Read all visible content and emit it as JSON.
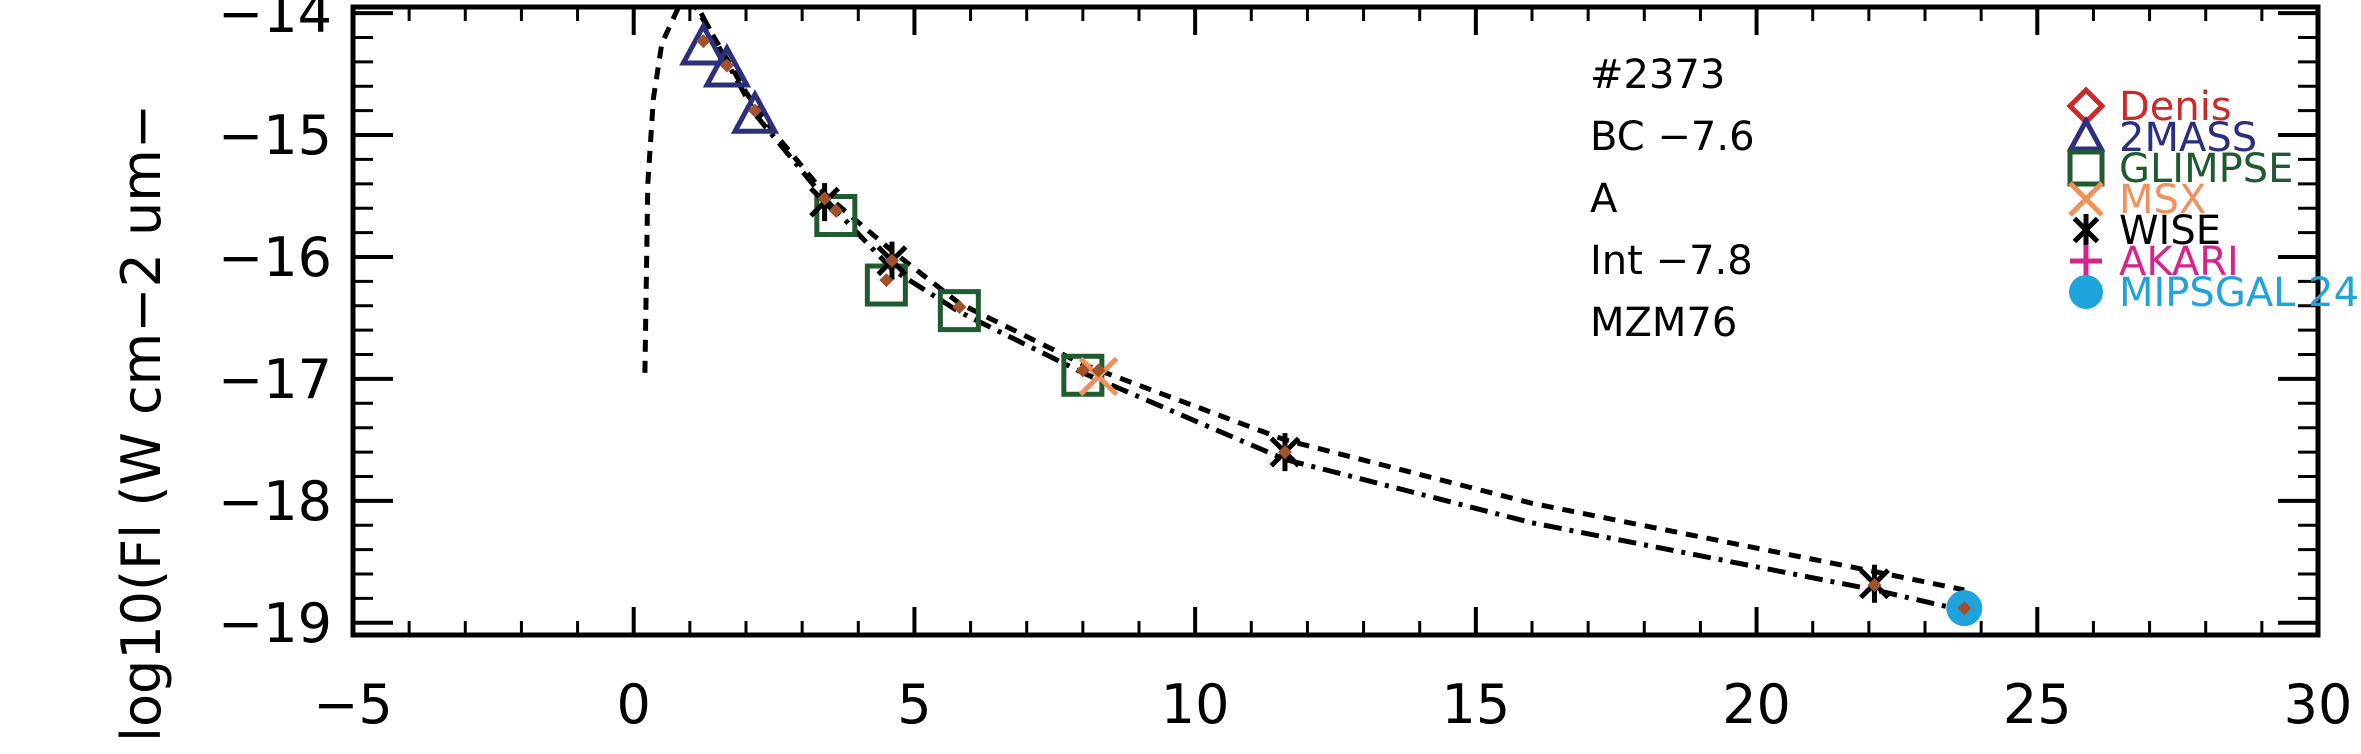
{
  "chart_data": {
    "type": "scatter",
    "ylabel": "log10(Fl (W cm−2 um−",
    "xlim": [
      -5,
      30
    ],
    "ylim": [
      -19.1,
      -13.95
    ],
    "x_ticks": [
      -5,
      0,
      5,
      10,
      15,
      20,
      25,
      30
    ],
    "x_tick_labels": [
      "−5",
      "0",
      "5",
      "10",
      "15",
      "20",
      "25",
      "30"
    ],
    "y_ticks": [
      -14,
      -15,
      -16,
      -17,
      -18,
      -19
    ],
    "y_tick_labels": [
      "−14",
      "−15",
      "−16",
      "−17",
      "−18",
      "−19"
    ],
    "annotations": [
      "#2373",
      "BC −7.6",
      "A",
      "Int −7.8",
      "MZM76"
    ],
    "legend": [
      {
        "label": "Denis",
        "marker": "diamond",
        "color": "#cc2a2a"
      },
      {
        "label": "2MASS",
        "marker": "triangle",
        "color": "#2b2f7c"
      },
      {
        "label": "GLIMPSE",
        "marker": "square",
        "color": "#1f5a30"
      },
      {
        "label": "MSX",
        "marker": "x",
        "color": "#f0905a"
      },
      {
        "label": "WISE",
        "marker": "asterisk",
        "color": "#000000"
      },
      {
        "label": "AKARI",
        "marker": "plus",
        "color": "#d4268a"
      },
      {
        "label": "MIPSGAL 24",
        "marker": "circle",
        "color": "#1fa3dc"
      }
    ],
    "series": [
      {
        "name": "2MASS",
        "marker": "triangle",
        "color": "#2b2f7c",
        "points": [
          [
            1.24,
            -14.28
          ],
          [
            1.66,
            -14.46
          ],
          [
            2.16,
            -14.84
          ]
        ]
      },
      {
        "name": "GLIMPSE",
        "marker": "square",
        "color": "#1f5a30",
        "points": [
          [
            3.6,
            -15.66
          ],
          [
            4.5,
            -16.23
          ],
          [
            5.8,
            -16.44
          ],
          [
            8.0,
            -16.97
          ]
        ]
      },
      {
        "name": "MSX",
        "marker": "x",
        "color": "#f0905a",
        "points": [
          [
            8.28,
            -16.98
          ]
        ]
      },
      {
        "name": "WISE",
        "marker": "asterisk",
        "color": "#000000",
        "points": [
          [
            3.4,
            -15.55
          ],
          [
            4.6,
            -16.03
          ],
          [
            11.6,
            -17.6
          ],
          [
            22.1,
            -18.68
          ]
        ]
      },
      {
        "name": "MIPSGAL 24",
        "marker": "circle",
        "color": "#1fa3dc",
        "points": [
          [
            23.7,
            -18.88
          ]
        ]
      },
      {
        "name": "model-points",
        "marker": "small-diamond",
        "color": "#a0522d",
        "points": [
          [
            1.24,
            -14.23
          ],
          [
            1.66,
            -14.43
          ],
          [
            2.16,
            -14.8
          ],
          [
            3.4,
            -15.52
          ],
          [
            3.6,
            -15.62
          ],
          [
            4.5,
            -16.19
          ],
          [
            4.6,
            -16.03
          ],
          [
            5.8,
            -16.41
          ],
          [
            8.0,
            -16.93
          ],
          [
            8.28,
            -16.93
          ],
          [
            11.6,
            -17.6
          ],
          [
            22.1,
            -18.69
          ],
          [
            23.7,
            -18.88
          ]
        ]
      }
    ],
    "curves": [
      {
        "name": "dashed-fit",
        "style": "dashed",
        "points": [
          [
            0.2,
            -16.95
          ],
          [
            0.25,
            -15.4
          ],
          [
            0.35,
            -14.7
          ],
          [
            0.5,
            -14.25
          ],
          [
            0.8,
            -13.95
          ],
          [
            1.1,
            -13.95
          ],
          [
            1.5,
            -14.25
          ],
          [
            2.0,
            -14.65
          ],
          [
            2.5,
            -14.98
          ],
          [
            3.4,
            -15.48
          ],
          [
            4.6,
            -15.95
          ],
          [
            5.8,
            -16.38
          ],
          [
            8.0,
            -16.88
          ],
          [
            11.6,
            -17.5
          ],
          [
            16.0,
            -18.02
          ],
          [
            22.1,
            -18.58
          ],
          [
            23.7,
            -18.73
          ]
        ]
      },
      {
        "name": "dashdot-fit",
        "style": "dashdot",
        "points": [
          [
            1.2,
            -14.0
          ],
          [
            1.6,
            -14.35
          ],
          [
            2.2,
            -14.85
          ],
          [
            3.4,
            -15.52
          ],
          [
            4.6,
            -16.1
          ],
          [
            5.8,
            -16.45
          ],
          [
            8.0,
            -16.95
          ],
          [
            11.6,
            -17.66
          ],
          [
            16.0,
            -18.18
          ],
          [
            22.1,
            -18.73
          ],
          [
            23.7,
            -18.9
          ]
        ]
      }
    ]
  }
}
